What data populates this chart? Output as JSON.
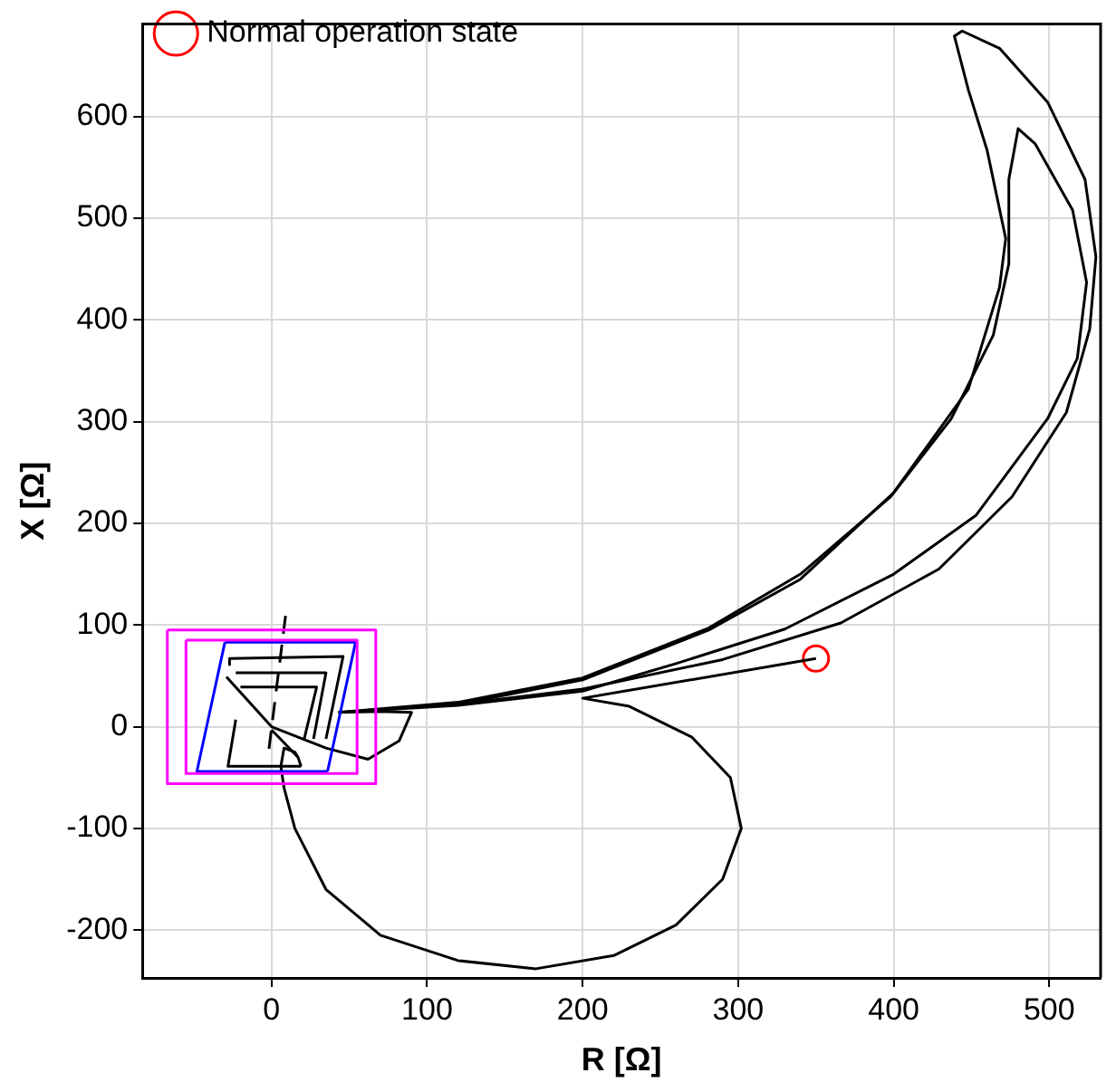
{
  "chart_data": {
    "type": "line",
    "xlabel": "R [Ω]",
    "ylabel": "X [Ω]",
    "xlim": [
      -83,
      533
    ],
    "ylim": [
      -247,
      691
    ],
    "xticks": [
      0,
      100,
      200,
      300,
      400,
      500
    ],
    "yticks": [
      -200,
      -100,
      0,
      100,
      200,
      300,
      400,
      500,
      600
    ],
    "grid": true,
    "legend": "top left",
    "series": [
      {
        "color": "#ff00ff",
        "x": [
          -67,
          67,
          67
        ],
        "values": [
          95,
          95,
          -56
        ]
      },
      {
        "color": "#ff00ff",
        "x": [
          67,
          -67,
          -67
        ],
        "values": [
          -56,
          -56,
          95
        ]
      },
      {
        "color": "#ff00ff",
        "x": [
          -55,
          55,
          55
        ],
        "values": [
          85,
          85,
          -46
        ]
      },
      {
        "color": "#ff00ff",
        "x": [
          55,
          -55,
          -55
        ],
        "values": [
          -46,
          -46,
          85
        ]
      },
      {
        "color": "#0000ff",
        "x": [
          -30,
          54,
          36
        ],
        "values": [
          83,
          83,
          -44
        ]
      },
      {
        "color": "#0000ff",
        "x": [
          36,
          -48,
          -30
        ],
        "values": [
          -44,
          -44,
          83
        ]
      },
      {
        "color": "#000000",
        "x": [
          -27,
          -27,
          46,
          35
        ],
        "values": [
          60,
          67,
          69,
          -12
        ]
      },
      {
        "color": "#000000",
        "x": [
          -23,
          35,
          27
        ],
        "values": [
          53,
          53,
          -12
        ]
      },
      {
        "color": "#000000",
        "x": [
          -20,
          29,
          21
        ],
        "values": [
          39,
          39,
          -12
        ]
      },
      {
        "color": "#000000",
        "x": [
          -23,
          -28,
          19
        ],
        "values": [
          7,
          -39,
          -39
        ]
      },
      {
        "color": "#000000",
        "x": [
          19,
          17,
          0
        ],
        "values": [
          -39,
          -30,
          -3
        ]
      },
      {
        "color": "#000000",
        "line_style": "dashed",
        "x": [
          9,
          -2
        ],
        "values": [
          109,
          -26
        ]
      },
      {
        "color": "#000000",
        "x": [
          350,
          200,
          230,
          270,
          295,
          302,
          290,
          260,
          220,
          170,
          120,
          70,
          35,
          15,
          8,
          6,
          8,
          15,
          17
        ],
        "values": [
          67,
          28,
          20,
          -10,
          -50,
          -100,
          -150,
          -195,
          -225,
          -238,
          -230,
          -205,
          -160,
          -100,
          -60,
          -39,
          -21,
          -25,
          -30
        ]
      },
      {
        "color": "#000000",
        "x": [
          -29,
          0,
          35,
          62,
          82,
          90,
          70,
          43
        ],
        "values": [
          49,
          0,
          -21,
          -32,
          -14,
          14,
          15,
          14
        ]
      },
      {
        "color": "#000000",
        "x": [
          43,
          120,
          200,
          281,
          340,
          398,
          448,
          468,
          472,
          460,
          448,
          439,
          444,
          468,
          499,
          523,
          530,
          526,
          511,
          476,
          429,
          366,
          290,
          200,
          120,
          60
        ],
        "values": [
          14,
          24,
          48,
          97,
          150,
          226,
          332,
          432,
          480,
          567,
          626,
          679,
          684,
          667,
          614,
          538,
          462,
          391,
          309,
          226,
          155,
          102,
          66,
          37,
          22,
          16
        ]
      },
      {
        "color": "#000000",
        "x": [
          60,
          120,
          200,
          281,
          340,
          400,
          437,
          464,
          474,
          474,
          480,
          491,
          515,
          524,
          518,
          499,
          453,
          400,
          330,
          260,
          200,
          120,
          43
        ],
        "values": [
          16,
          22,
          46,
          95,
          145,
          230,
          303,
          385,
          455,
          538,
          588,
          573,
          508,
          437,
          362,
          303,
          208,
          150,
          96,
          62,
          35,
          21,
          14
        ]
      },
      {
        "type": "scatter",
        "name": "Normal operation state",
        "color": "#ff0000",
        "marker": "circle",
        "x": [
          350
        ],
        "values": [
          67
        ]
      }
    ]
  }
}
